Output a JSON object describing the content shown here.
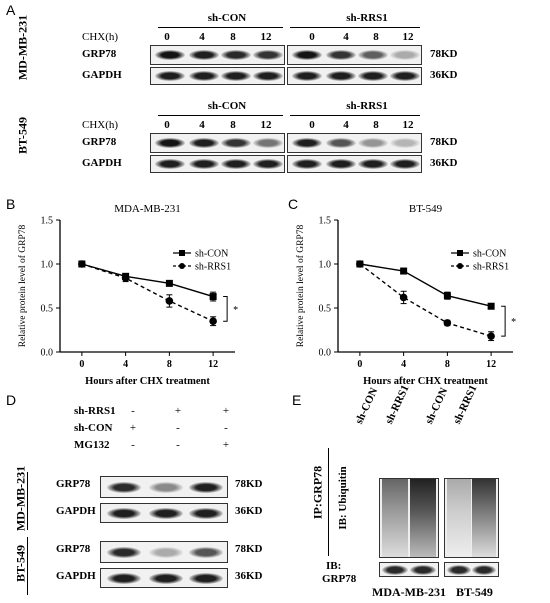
{
  "panels": {
    "A": "A",
    "B": "B",
    "C": "C",
    "D": "D",
    "E": "E"
  },
  "panelA": {
    "cells": [
      {
        "cell": "MD-MB-231",
        "chx_label": "CHX(h)",
        "group1": "sh-CON",
        "group2": "sh-RRS1",
        "timepoints": [
          "0",
          "4",
          "8",
          "12",
          "0",
          "4",
          "8",
          "12"
        ],
        "row1": "GRP78",
        "row2": "GAPDH",
        "kd1": "78KD",
        "kd2": "36KD",
        "grp78_g1": [
          1.0,
          0.95,
          0.9,
          0.85
        ],
        "grp78_g2": [
          1.0,
          0.85,
          0.65,
          0.3
        ]
      },
      {
        "cell": "BT-549",
        "chx_label": "CHX(h)",
        "group1": "sh-CON",
        "group2": "sh-RRS1",
        "timepoints": [
          "0",
          "4",
          "8",
          "12",
          "0",
          "4",
          "8",
          "12"
        ],
        "row1": "GRP78",
        "row2": "GAPDH",
        "kd1": "78KD",
        "kd2": "36KD",
        "grp78_g1": [
          1.0,
          0.95,
          0.85,
          0.55
        ],
        "grp78_g2": [
          0.95,
          0.7,
          0.4,
          0.25
        ]
      }
    ]
  },
  "panelB": {
    "title": "MDA-MB-231",
    "sig": "*"
  },
  "panelC": {
    "title": "BT-549",
    "sig": "*"
  },
  "chart_data": [
    {
      "type": "line",
      "title": "MDA-MB-231",
      "xlabel": "Hours after CHX treatment",
      "ylabel": "Relative protein level of GRP78",
      "x": [
        0,
        4,
        8,
        12
      ],
      "xticks": [
        "0",
        "4",
        "8",
        "12"
      ],
      "ylim": [
        0,
        1.5
      ],
      "yticks": [
        "0.0",
        "0.5",
        "1.0",
        "1.5"
      ],
      "legend": "top-right",
      "series": [
        {
          "name": "sh-CON",
          "values": [
            1.0,
            0.86,
            0.78,
            0.63
          ],
          "err": [
            0.02,
            0.03,
            0.03,
            0.05
          ]
        },
        {
          "name": "sh-RRS1",
          "values": [
            1.0,
            0.84,
            0.58,
            0.35
          ],
          "err": [
            0.02,
            0.04,
            0.07,
            0.05
          ]
        }
      ]
    },
    {
      "type": "line",
      "title": "BT-549",
      "xlabel": "Hours after CHX treatment",
      "ylabel": "Relative protein level of GRP78",
      "x": [
        0,
        4,
        8,
        12
      ],
      "xticks": [
        "0",
        "4",
        "8",
        "12"
      ],
      "ylim": [
        0,
        1.5
      ],
      "yticks": [
        "0.0",
        "0.5",
        "1.0",
        "1.5"
      ],
      "legend": "top-right",
      "series": [
        {
          "name": "sh-CON",
          "values": [
            1.0,
            0.92,
            0.64,
            0.52
          ],
          "err": [
            0.01,
            0.02,
            0.04,
            0.02
          ]
        },
        {
          "name": "sh-RRS1",
          "values": [
            1.0,
            0.62,
            0.33,
            0.18
          ],
          "err": [
            0.02,
            0.07,
            0.03,
            0.05
          ]
        }
      ]
    }
  ],
  "panelD": {
    "rows": [
      {
        "label": "sh-RRS1",
        "signs": [
          "-",
          "+",
          "+"
        ]
      },
      {
        "label": "sh-CON",
        "signs": [
          "+",
          "-",
          "-"
        ]
      },
      {
        "label": "MG132",
        "signs": [
          "-",
          "-",
          "+"
        ]
      }
    ],
    "cells": [
      {
        "cell": "MD-MB-231",
        "row1": "GRP78",
        "row2": "GAPDH",
        "kd1": "78KD",
        "kd2": "36KD",
        "grp78": [
          0.9,
          0.45,
          0.95
        ]
      },
      {
        "cell": "BT-549",
        "row1": "GRP78",
        "row2": "GAPDH",
        "kd1": "78KD",
        "kd2": "36KD",
        "grp78": [
          0.9,
          0.3,
          0.7
        ]
      }
    ]
  },
  "panelE": {
    "lanes": [
      "sh-CON",
      "sh-RRS1",
      "sh-CON",
      "sh-RRS1"
    ],
    "ip": "IP:GRP78",
    "ib1": "IB: Ubiquitin",
    "ib2": "IB:",
    "ib2b": "GRP78",
    "cells": [
      "MDA-MB-231",
      "BT-549"
    ]
  }
}
